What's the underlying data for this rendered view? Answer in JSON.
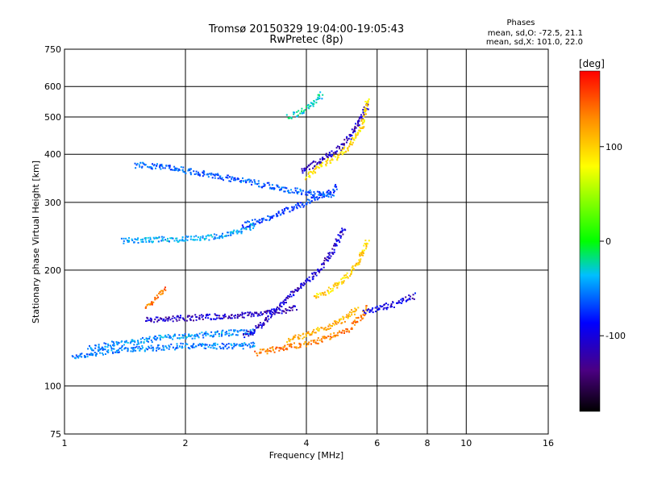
{
  "chart_data": {
    "type": "scatter",
    "title": "Tromsø 20150329 19:04:00-19:05:43",
    "subtitle": "RwPretec (8p)",
    "xlabel": "Frequency [MHz]",
    "ylabel": "Stationary phase Virtual Height [km]",
    "x_scale": "log",
    "y_scale": "log",
    "xlim": [
      1,
      16
    ],
    "ylim": [
      75,
      750
    ],
    "xticks": [
      1,
      2,
      4,
      6,
      8,
      10,
      16
    ],
    "xtick_labels": [
      "1",
      "2",
      "4",
      "6",
      "8",
      "10",
      "16"
    ],
    "yticks": [
      75,
      100,
      200,
      300,
      400,
      500,
      600,
      750
    ],
    "ytick_labels": [
      "75",
      "100",
      "200",
      "300",
      "400",
      "500",
      "600",
      "750"
    ],
    "xgrid": [
      2,
      4,
      6,
      8,
      10
    ],
    "ygrid": [
      100,
      200,
      300,
      400,
      500,
      600
    ],
    "colorbar": {
      "label": "[deg]",
      "ticks": [
        100,
        0,
        -100
      ],
      "tick_labels": [
        "100",
        "0",
        "-100"
      ],
      "range": [
        -180,
        180
      ]
    },
    "stats": {
      "heading": "Phases",
      "line_o": "mean, sd,O: -72.5, 21.1",
      "line_x": "mean, sd,X: 101.0, 22.0"
    },
    "traces": [
      {
        "x": [
          1.05,
          1.2,
          1.4,
          1.6,
          1.8,
          2.0,
          2.3,
          2.6,
          2.8,
          3.0
        ],
        "y": [
          118,
          122,
          124,
          125,
          126,
          127,
          127,
          127,
          127,
          128
        ],
        "phase": -60
      },
      {
        "x": [
          1.15,
          1.3,
          1.5,
          1.7,
          1.9,
          2.1,
          2.3,
          2.5,
          2.8,
          3.0
        ],
        "y": [
          125,
          128,
          130,
          133,
          134,
          135,
          136,
          137,
          138,
          139
        ],
        "phase": -55
      },
      {
        "x": [
          1.6,
          1.8,
          2.0,
          2.3,
          2.6,
          2.9,
          3.2,
          3.5,
          3.8
        ],
        "y": [
          148,
          149,
          150,
          151,
          152,
          153,
          155,
          157,
          160
        ],
        "phase": -120
      },
      {
        "x": [
          2.8,
          3.0,
          3.2,
          3.4,
          3.6,
          3.8,
          4.0,
          4.2,
          4.4,
          4.6,
          4.8,
          5.0
        ],
        "y": [
          135,
          140,
          150,
          160,
          170,
          178,
          186,
          195,
          205,
          220,
          240,
          260
        ],
        "phase": -115
      },
      {
        "x": [
          3.0,
          3.3,
          3.6,
          3.9,
          4.2,
          4.5,
          4.8,
          5.1,
          5.3,
          5.5,
          5.7
        ],
        "y": [
          122,
          124,
          126,
          128,
          130,
          133,
          136,
          140,
          146,
          152,
          160
        ],
        "phase": 135
      },
      {
        "x": [
          3.6,
          3.9,
          4.2,
          4.5,
          4.8,
          5.1,
          5.4
        ],
        "y": [
          132,
          135,
          138,
          142,
          146,
          152,
          160
        ],
        "phase": 115
      },
      {
        "x": [
          4.2,
          4.5,
          4.7,
          4.9,
          5.1,
          5.3,
          5.5,
          5.7
        ],
        "y": [
          170,
          175,
          182,
          188,
          195,
          205,
          220,
          240
        ],
        "phase": 100
      },
      {
        "x": [
          5.6,
          5.9,
          6.2,
          6.5,
          6.8,
          7.1,
          7.5
        ],
        "y": [
          155,
          158,
          160,
          162,
          165,
          168,
          172
        ],
        "phase": -110
      },
      {
        "x": [
          1.4,
          1.6,
          1.8,
          2.0,
          2.2,
          2.4,
          2.6,
          2.8,
          3.0
        ],
        "y": [
          238,
          240,
          240,
          241,
          242,
          244,
          248,
          255,
          262
        ],
        "phase": -50
      },
      {
        "x": [
          2.8,
          3.1,
          3.4,
          3.7,
          4.0,
          4.3,
          4.6,
          4.8
        ],
        "y": [
          262,
          270,
          280,
          290,
          300,
          310,
          320,
          330
        ],
        "phase": -80
      },
      {
        "x": [
          1.5,
          1.8,
          2.1,
          2.5,
          3.0,
          3.5,
          4.0,
          4.4,
          4.7
        ],
        "y": [
          375,
          370,
          360,
          348,
          336,
          325,
          318,
          314,
          312
        ],
        "phase": -70
      },
      {
        "x": [
          3.9,
          4.2,
          4.5,
          4.8,
          5.1,
          5.4,
          5.7
        ],
        "y": [
          360,
          378,
          395,
          410,
          440,
          480,
          540
        ],
        "phase": -120
      },
      {
        "x": [
          4.0,
          4.3,
          4.6,
          4.9,
          5.2,
          5.5,
          5.7
        ],
        "y": [
          350,
          370,
          385,
          400,
          430,
          470,
          560
        ],
        "phase": 95
      },
      {
        "x": [
          1.6,
          1.65,
          1.7,
          1.75,
          1.8
        ],
        "y": [
          160,
          165,
          170,
          175,
          180
        ],
        "phase": 140
      },
      {
        "x": [
          3.6,
          3.8,
          4.0,
          4.2,
          4.4
        ],
        "y": [
          500,
          510,
          525,
          545,
          575
        ],
        "phase": -30
      }
    ]
  }
}
